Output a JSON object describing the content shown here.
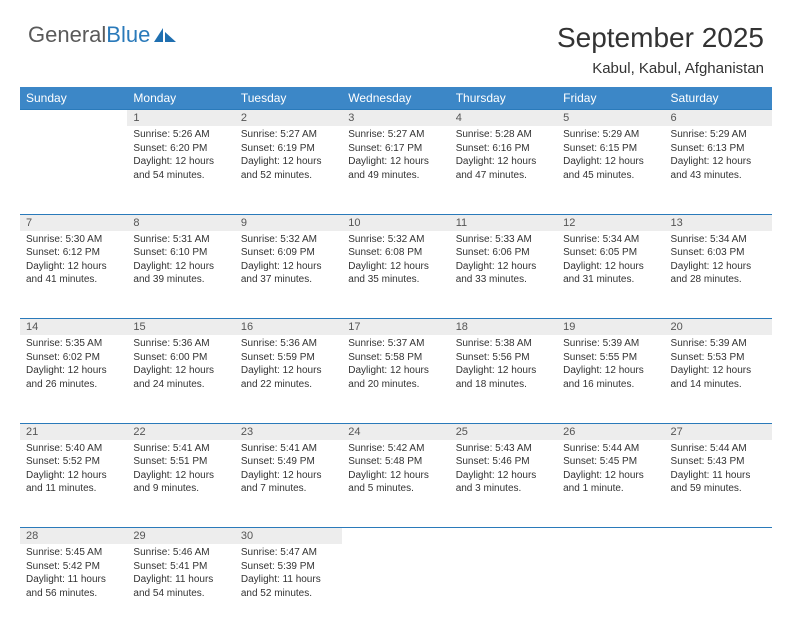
{
  "logo": {
    "text1": "General",
    "text2": "Blue"
  },
  "title": "September 2025",
  "location": "Kabul, Kabul, Afghanistan",
  "colors": {
    "header_bg": "#3c87c7",
    "header_text": "#ffffff",
    "daynum_bg": "#ededed",
    "rule": "#2a7aba",
    "body_text": "#333333",
    "logo_gray": "#5a5a5a",
    "logo_blue": "#2a7aba",
    "page_bg": "#ffffff"
  },
  "typography": {
    "title_fontsize": 28,
    "location_fontsize": 15,
    "weekday_fontsize": 12,
    "daynum_fontsize": 11,
    "cell_fontsize": 10,
    "logo_fontsize": 22
  },
  "weekdays": [
    "Sunday",
    "Monday",
    "Tuesday",
    "Wednesday",
    "Thursday",
    "Friday",
    "Saturday"
  ],
  "weeks": [
    {
      "nums": [
        "",
        "1",
        "2",
        "3",
        "4",
        "5",
        "6"
      ],
      "cells": [
        null,
        {
          "sunrise": "Sunrise: 5:26 AM",
          "sunset": "Sunset: 6:20 PM",
          "daylight": "Daylight: 12 hours and 54 minutes."
        },
        {
          "sunrise": "Sunrise: 5:27 AM",
          "sunset": "Sunset: 6:19 PM",
          "daylight": "Daylight: 12 hours and 52 minutes."
        },
        {
          "sunrise": "Sunrise: 5:27 AM",
          "sunset": "Sunset: 6:17 PM",
          "daylight": "Daylight: 12 hours and 49 minutes."
        },
        {
          "sunrise": "Sunrise: 5:28 AM",
          "sunset": "Sunset: 6:16 PM",
          "daylight": "Daylight: 12 hours and 47 minutes."
        },
        {
          "sunrise": "Sunrise: 5:29 AM",
          "sunset": "Sunset: 6:15 PM",
          "daylight": "Daylight: 12 hours and 45 minutes."
        },
        {
          "sunrise": "Sunrise: 5:29 AM",
          "sunset": "Sunset: 6:13 PM",
          "daylight": "Daylight: 12 hours and 43 minutes."
        }
      ]
    },
    {
      "nums": [
        "7",
        "8",
        "9",
        "10",
        "11",
        "12",
        "13"
      ],
      "cells": [
        {
          "sunrise": "Sunrise: 5:30 AM",
          "sunset": "Sunset: 6:12 PM",
          "daylight": "Daylight: 12 hours and 41 minutes."
        },
        {
          "sunrise": "Sunrise: 5:31 AM",
          "sunset": "Sunset: 6:10 PM",
          "daylight": "Daylight: 12 hours and 39 minutes."
        },
        {
          "sunrise": "Sunrise: 5:32 AM",
          "sunset": "Sunset: 6:09 PM",
          "daylight": "Daylight: 12 hours and 37 minutes."
        },
        {
          "sunrise": "Sunrise: 5:32 AM",
          "sunset": "Sunset: 6:08 PM",
          "daylight": "Daylight: 12 hours and 35 minutes."
        },
        {
          "sunrise": "Sunrise: 5:33 AM",
          "sunset": "Sunset: 6:06 PM",
          "daylight": "Daylight: 12 hours and 33 minutes."
        },
        {
          "sunrise": "Sunrise: 5:34 AM",
          "sunset": "Sunset: 6:05 PM",
          "daylight": "Daylight: 12 hours and 31 minutes."
        },
        {
          "sunrise": "Sunrise: 5:34 AM",
          "sunset": "Sunset: 6:03 PM",
          "daylight": "Daylight: 12 hours and 28 minutes."
        }
      ]
    },
    {
      "nums": [
        "14",
        "15",
        "16",
        "17",
        "18",
        "19",
        "20"
      ],
      "cells": [
        {
          "sunrise": "Sunrise: 5:35 AM",
          "sunset": "Sunset: 6:02 PM",
          "daylight": "Daylight: 12 hours and 26 minutes."
        },
        {
          "sunrise": "Sunrise: 5:36 AM",
          "sunset": "Sunset: 6:00 PM",
          "daylight": "Daylight: 12 hours and 24 minutes."
        },
        {
          "sunrise": "Sunrise: 5:36 AM",
          "sunset": "Sunset: 5:59 PM",
          "daylight": "Daylight: 12 hours and 22 minutes."
        },
        {
          "sunrise": "Sunrise: 5:37 AM",
          "sunset": "Sunset: 5:58 PM",
          "daylight": "Daylight: 12 hours and 20 minutes."
        },
        {
          "sunrise": "Sunrise: 5:38 AM",
          "sunset": "Sunset: 5:56 PM",
          "daylight": "Daylight: 12 hours and 18 minutes."
        },
        {
          "sunrise": "Sunrise: 5:39 AM",
          "sunset": "Sunset: 5:55 PM",
          "daylight": "Daylight: 12 hours and 16 minutes."
        },
        {
          "sunrise": "Sunrise: 5:39 AM",
          "sunset": "Sunset: 5:53 PM",
          "daylight": "Daylight: 12 hours and 14 minutes."
        }
      ]
    },
    {
      "nums": [
        "21",
        "22",
        "23",
        "24",
        "25",
        "26",
        "27"
      ],
      "cells": [
        {
          "sunrise": "Sunrise: 5:40 AM",
          "sunset": "Sunset: 5:52 PM",
          "daylight": "Daylight: 12 hours and 11 minutes."
        },
        {
          "sunrise": "Sunrise: 5:41 AM",
          "sunset": "Sunset: 5:51 PM",
          "daylight": "Daylight: 12 hours and 9 minutes."
        },
        {
          "sunrise": "Sunrise: 5:41 AM",
          "sunset": "Sunset: 5:49 PM",
          "daylight": "Daylight: 12 hours and 7 minutes."
        },
        {
          "sunrise": "Sunrise: 5:42 AM",
          "sunset": "Sunset: 5:48 PM",
          "daylight": "Daylight: 12 hours and 5 minutes."
        },
        {
          "sunrise": "Sunrise: 5:43 AM",
          "sunset": "Sunset: 5:46 PM",
          "daylight": "Daylight: 12 hours and 3 minutes."
        },
        {
          "sunrise": "Sunrise: 5:44 AM",
          "sunset": "Sunset: 5:45 PM",
          "daylight": "Daylight: 12 hours and 1 minute."
        },
        {
          "sunrise": "Sunrise: 5:44 AM",
          "sunset": "Sunset: 5:43 PM",
          "daylight": "Daylight: 11 hours and 59 minutes."
        }
      ]
    },
    {
      "nums": [
        "28",
        "29",
        "30",
        "",
        "",
        "",
        ""
      ],
      "cells": [
        {
          "sunrise": "Sunrise: 5:45 AM",
          "sunset": "Sunset: 5:42 PM",
          "daylight": "Daylight: 11 hours and 56 minutes."
        },
        {
          "sunrise": "Sunrise: 5:46 AM",
          "sunset": "Sunset: 5:41 PM",
          "daylight": "Daylight: 11 hours and 54 minutes."
        },
        {
          "sunrise": "Sunrise: 5:47 AM",
          "sunset": "Sunset: 5:39 PM",
          "daylight": "Daylight: 11 hours and 52 minutes."
        },
        null,
        null,
        null,
        null
      ]
    }
  ]
}
